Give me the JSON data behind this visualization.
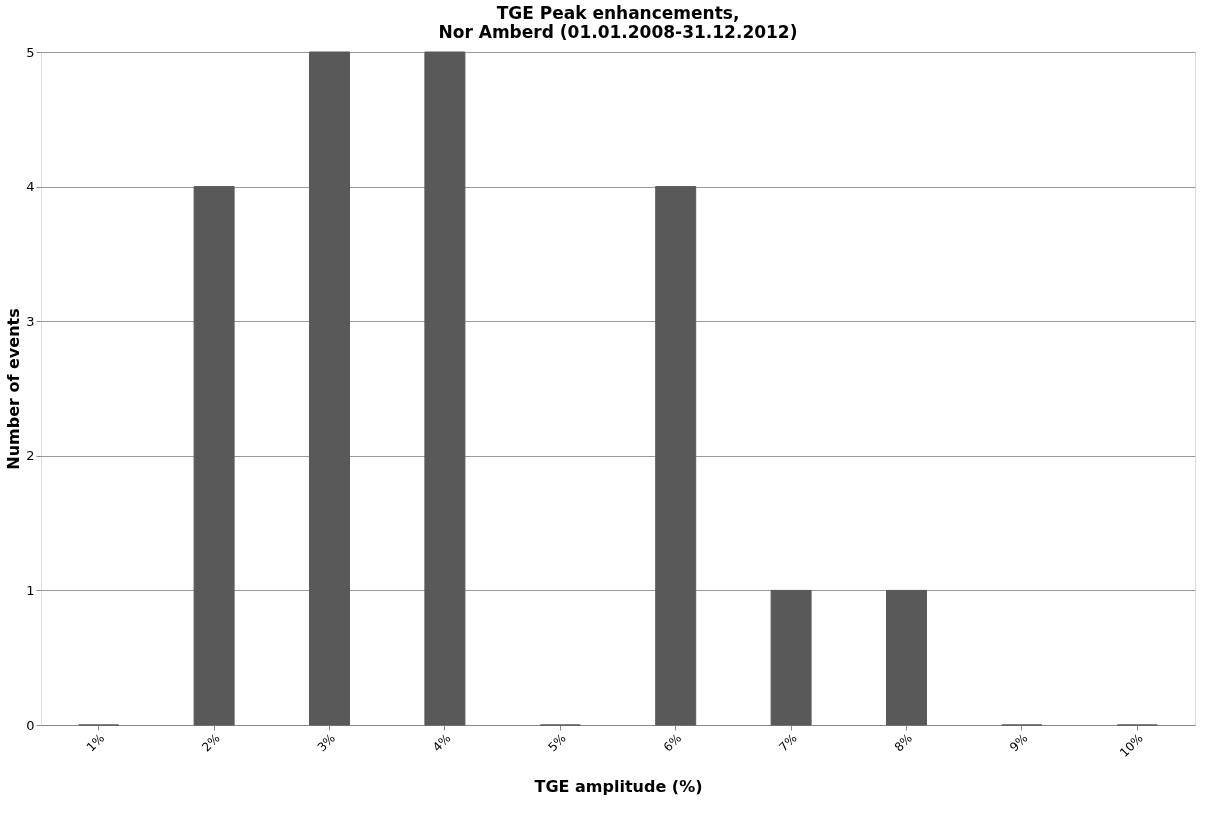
{
  "chart_data": {
    "type": "bar",
    "title": "TGE Peak enhancements,\nNor Amberd (01.01.2008-31.12.2012)",
    "xlabel": "TGE amplitude (%)",
    "ylabel": "Number of events",
    "categories": [
      "1%",
      "2%",
      "3%",
      "4%",
      "5%",
      "6%",
      "7%",
      "8%",
      "9%",
      "10%"
    ],
    "values": [
      0,
      4,
      5,
      5,
      0,
      4,
      1,
      1,
      0,
      0
    ],
    "color": "#595959",
    "ylim": [
      0,
      5
    ],
    "yticks": [
      0,
      1,
      2,
      3,
      4,
      5
    ],
    "grid": "y"
  }
}
